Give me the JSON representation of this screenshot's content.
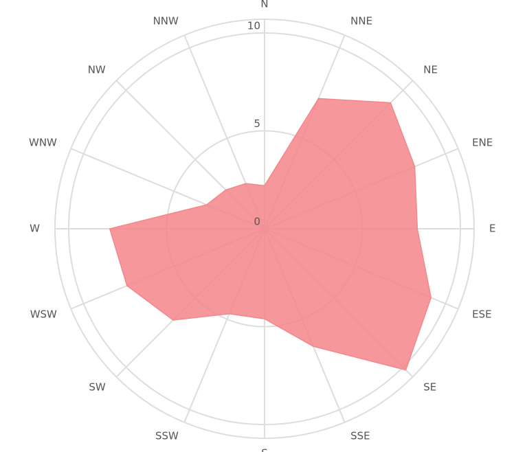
{
  "chart_data": {
    "type": "radar",
    "categories": [
      "N",
      "NNE",
      "NE",
      "ENE",
      "E",
      "ESE",
      "SE",
      "SSE",
      "S",
      "SSW",
      "SW",
      "WSW",
      "W",
      "WNW",
      "NW",
      "NNW"
    ],
    "values": [
      2.2,
      7.2,
      9.1,
      8.3,
      7.8,
      9.2,
      10.2,
      6.5,
      4.6,
      4.7,
      6.6,
      7.6,
      7.9,
      3.2,
      2.8,
      2.5
    ],
    "color": "#f4868a",
    "rlim": [
      0,
      10.7
    ],
    "rticks": [
      0,
      5,
      10
    ],
    "grid": true
  }
}
